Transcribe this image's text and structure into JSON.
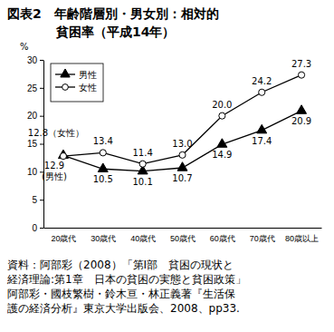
{
  "chart_data": {
    "type": "line",
    "title": "図表2　年齢階層別・男女別：相対的\n貧困率（平成14年）",
    "y_label": "%",
    "categories": [
      "20歳代",
      "30歳代",
      "40歳代",
      "50歳代",
      "60歳代",
      "70歳代",
      "80歳以上"
    ],
    "series": [
      {
        "name": "男性",
        "color": "#000000",
        "marker": "triangle",
        "line_style": "solid",
        "values": [
          12.9,
          10.5,
          10.1,
          10.7,
          14.9,
          17.4,
          20.9
        ],
        "value_labels": [
          "12.9\n(男性)",
          "10.5",
          "10.1",
          "10.7",
          "14.9",
          "17.4",
          "20.9"
        ]
      },
      {
        "name": "女性",
        "color": "#000000",
        "marker": "circle-open",
        "line_style": "solid",
        "values": [
          12.8,
          13.4,
          11.4,
          13.0,
          20.0,
          24.2,
          27.3
        ],
        "value_labels": [
          "12.8（女性）",
          "13.4",
          "11.4",
          "13.0",
          "20.0",
          "24.2",
          "27.3"
        ]
      }
    ],
    "ylim": [
      0,
      30
    ],
    "yticks": [
      0,
      5,
      10,
      15,
      20,
      25,
      30
    ],
    "grid": false,
    "legend": "upper left",
    "data_labels": true,
    "source": "資料：阿部彩（2008）「第Ⅰ部　貧困の現状と\n経済理論:第1章　日本の貧困の実態と貧困政策」\n阿部彩・國枝繁樹・鈴木亘・林正義著『生活保\n護の経済分析』東京大学出版会、2008、pp33."
  }
}
